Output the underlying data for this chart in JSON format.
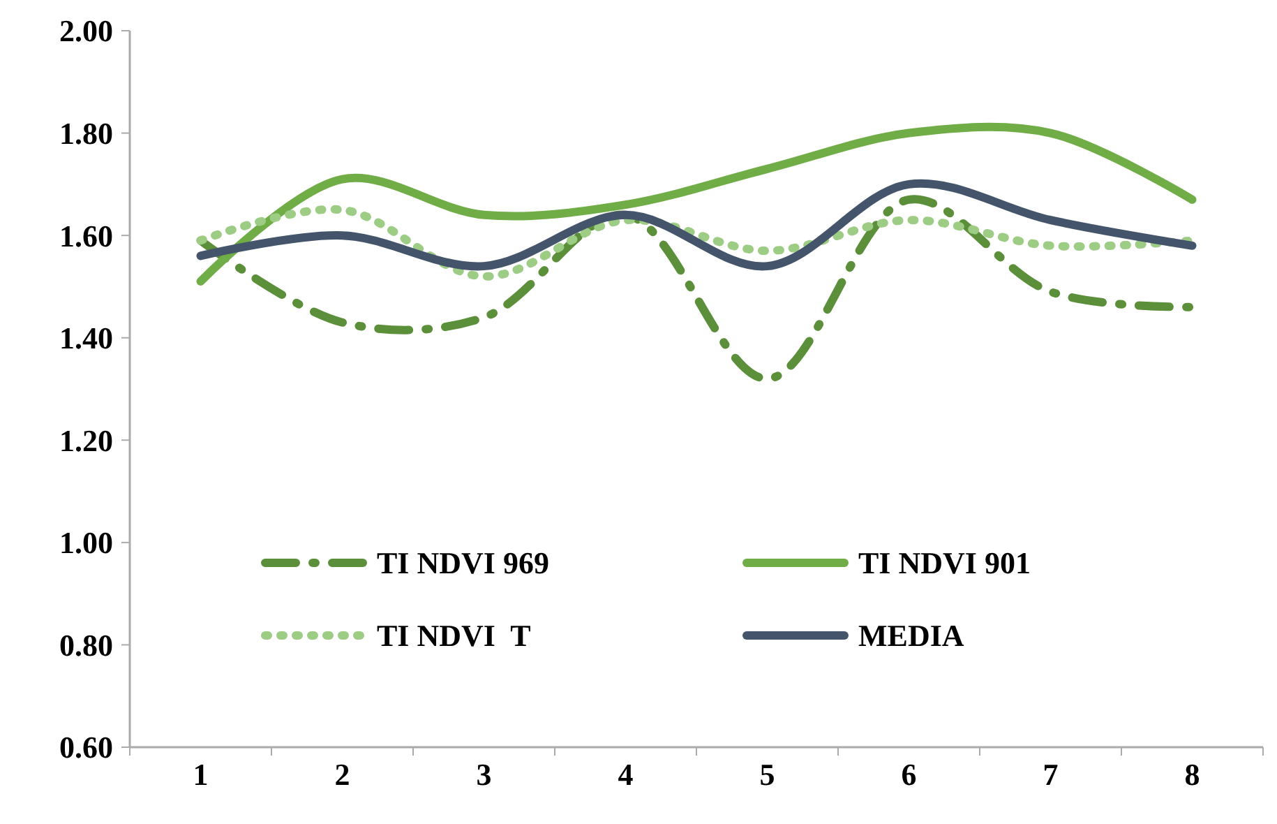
{
  "chart_data": {
    "type": "line",
    "categories": [
      "1",
      "2",
      "3",
      "4",
      "5",
      "6",
      "7",
      "8"
    ],
    "series": [
      {
        "name": "TI NDVI 969",
        "color": "#5b8f3a",
        "line_style": "dashdot",
        "values": [
          1.59,
          1.43,
          1.44,
          1.64,
          1.32,
          1.67,
          1.49,
          1.46
        ]
      },
      {
        "name": "TI NDVI 901",
        "color": "#70ad47",
        "line_style": "solid",
        "values": [
          1.51,
          1.71,
          1.64,
          1.66,
          1.73,
          1.8,
          1.8,
          1.67
        ]
      },
      {
        "name": "TI NDVI  T",
        "color": "#9dcc85",
        "line_style": "dotted",
        "values": [
          1.59,
          1.65,
          1.52,
          1.63,
          1.57,
          1.63,
          1.58,
          1.59
        ]
      },
      {
        "name": "MEDIA",
        "color": "#44546a",
        "line_style": "solid",
        "values": [
          1.56,
          1.6,
          1.54,
          1.64,
          1.54,
          1.7,
          1.63,
          1.58
        ]
      }
    ],
    "ylim": [
      0.6,
      2.0
    ],
    "yticks": [
      {
        "value": 0.6,
        "label": "0.60"
      },
      {
        "value": 0.8,
        "label": "0.80"
      },
      {
        "value": 1.0,
        "label": "1.00"
      },
      {
        "value": 1.2,
        "label": "1.20"
      },
      {
        "value": 1.4,
        "label": "1.40"
      },
      {
        "value": 1.6,
        "label": "1.60"
      },
      {
        "value": 1.8,
        "label": "1.80"
      },
      {
        "value": 2.0,
        "label": "2.00"
      }
    ],
    "grid": false,
    "legend": "bottom"
  }
}
